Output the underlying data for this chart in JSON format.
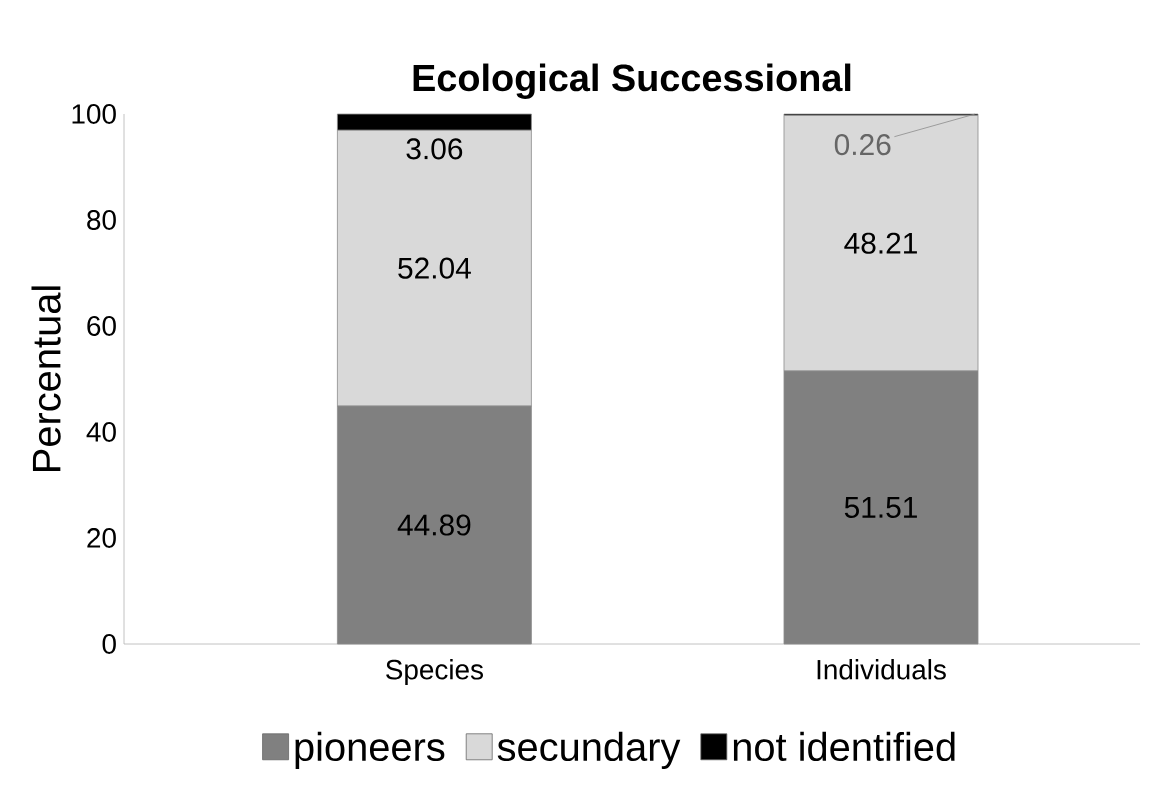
{
  "chart_data": {
    "type": "bar",
    "title": "Ecological Successional",
    "ylabel": "Percentual",
    "categories": [
      "Species",
      "Individuals"
    ],
    "stacked": true,
    "data_labels": true,
    "legend": "bottom",
    "ylim": [
      0,
      100
    ],
    "yticks": [
      0,
      20,
      40,
      60,
      80,
      100
    ],
    "series": [
      {
        "name": "pioneers",
        "color": "#808080",
        "values": [
          44.89,
          51.51
        ]
      },
      {
        "name": "secundary",
        "color": "#d9d9d9",
        "values": [
          52.04,
          48.21
        ]
      },
      {
        "name": "not identified",
        "color": "#000000",
        "values": [
          3.06,
          0.26
        ]
      }
    ]
  }
}
